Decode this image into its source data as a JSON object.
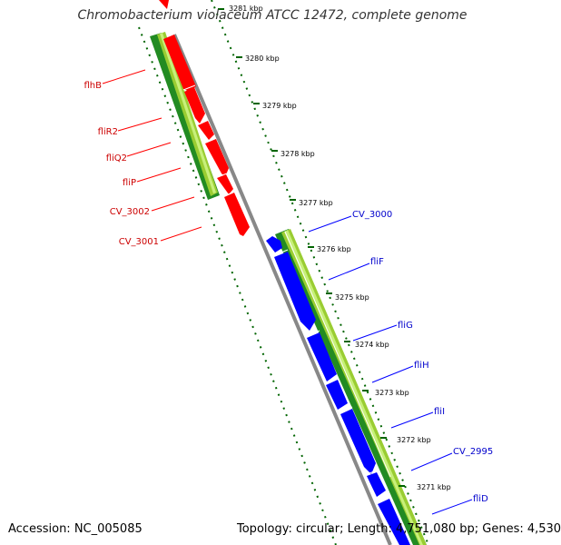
{
  "title": "Chromobacterium violaceum ATCC 12472, complete genome",
  "footer": {
    "accession": "Accession: NC_005085",
    "summary": "Topology: circular; Length: 4,751,080 bp; Genes: 4,530"
  },
  "colors": {
    "forward_gene": "#ff0000",
    "reverse_gene": "#0000ff",
    "backbone": "#888888",
    "gc_dark": "#228b22",
    "gc_light": "#9acd32",
    "tick": "#006400"
  },
  "scale": {
    "unit": "kbp",
    "ticks": [
      "3281 kbp",
      "3280 kbp",
      "3279 kbp",
      "3278 kbp",
      "3277 kbp",
      "3276 kbp",
      "3275 kbp",
      "3274 kbp",
      "3273 kbp",
      "3272 kbp",
      "3271 kbp"
    ]
  },
  "forward_genes": [
    "flhB",
    "fliR2",
    "fliQ2",
    "fliP",
    "CV_3002",
    "CV_3001"
  ],
  "reverse_genes": [
    "CV_3000",
    "fliF",
    "fliG",
    "fliH",
    "fliI",
    "CV_2995",
    "fliD"
  ]
}
